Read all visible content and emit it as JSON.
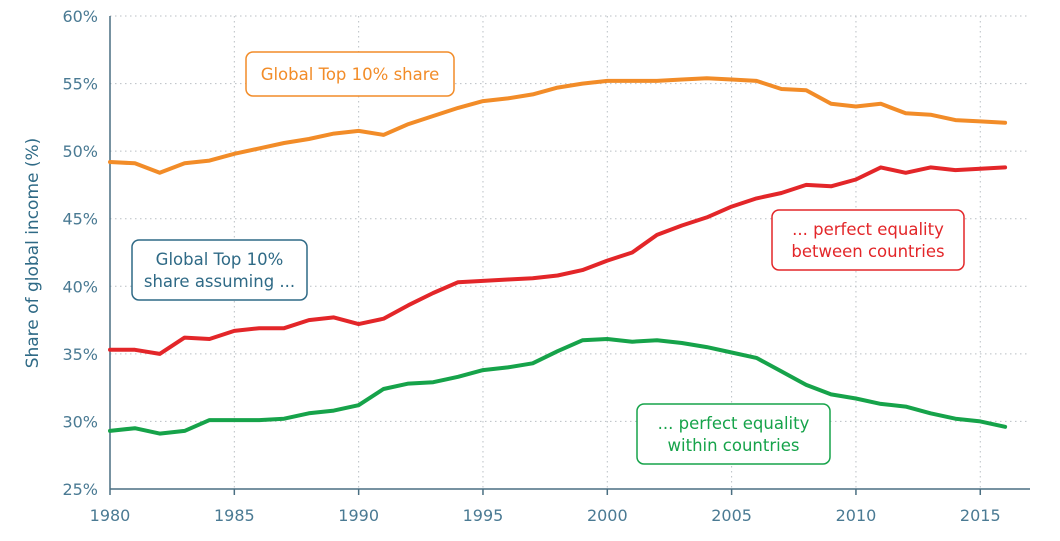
{
  "chart_data": {
    "type": "line",
    "title": "",
    "xlabel": "",
    "ylabel": "Share of global income (%)",
    "xlim": [
      1980,
      2017
    ],
    "ylim": [
      25,
      60
    ],
    "x_ticks": [
      1980,
      1985,
      1990,
      1995,
      2000,
      2005,
      2010,
      2015
    ],
    "y_ticks": [
      25,
      30,
      35,
      40,
      45,
      50,
      55,
      60
    ],
    "y_tick_labels": [
      "25%",
      "30%",
      "35%",
      "40%",
      "45%",
      "50%",
      "55%",
      "60%"
    ],
    "grid": true,
    "x": [
      1980,
      1981,
      1982,
      1983,
      1984,
      1985,
      1986,
      1987,
      1988,
      1989,
      1990,
      1991,
      1992,
      1993,
      1994,
      1995,
      1996,
      1997,
      1998,
      1999,
      2000,
      2001,
      2002,
      2003,
      2004,
      2005,
      2006,
      2007,
      2008,
      2009,
      2010,
      2011,
      2012,
      2013,
      2014,
      2015,
      2016
    ],
    "series": [
      {
        "key": "top10",
        "color": "#f28c28",
        "values": [
          49.2,
          49.1,
          48.4,
          49.1,
          49.3,
          49.8,
          50.2,
          50.6,
          50.9,
          51.3,
          51.5,
          51.2,
          52.0,
          52.6,
          53.2,
          53.7,
          53.9,
          54.2,
          54.7,
          55.0,
          55.2,
          55.2,
          55.2,
          55.3,
          55.4,
          55.3,
          55.2,
          54.6,
          54.5,
          53.5,
          53.3,
          53.5,
          52.8,
          52.7,
          52.3,
          52.2,
          52.1
        ]
      },
      {
        "key": "between",
        "color": "#e32629",
        "values": [
          35.3,
          35.3,
          35.0,
          36.2,
          36.1,
          36.7,
          36.9,
          36.9,
          37.5,
          37.7,
          37.2,
          37.6,
          38.6,
          39.5,
          40.3,
          40.4,
          40.5,
          40.6,
          40.8,
          41.2,
          41.9,
          42.5,
          43.8,
          44.5,
          45.1,
          45.9,
          46.5,
          46.9,
          47.5,
          47.4,
          47.9,
          48.8,
          48.4,
          48.8,
          48.6,
          48.7,
          48.8
        ]
      },
      {
        "key": "within",
        "color": "#16a34a",
        "values": [
          29.3,
          29.5,
          29.1,
          29.3,
          30.1,
          30.1,
          30.1,
          30.2,
          30.6,
          30.8,
          31.2,
          32.4,
          32.8,
          32.9,
          33.3,
          33.8,
          34.0,
          34.3,
          35.2,
          36.0,
          36.1,
          35.9,
          36.0,
          35.8,
          35.5,
          35.1,
          34.7,
          33.7,
          32.7,
          32.0,
          31.7,
          31.3,
          31.1,
          30.6,
          30.2,
          30.0,
          29.6
        ]
      }
    ],
    "annotations": [
      {
        "key": "top10-label",
        "lines": [
          "Global Top 10% share"
        ],
        "color": "#f28c28"
      },
      {
        "key": "assuming-label",
        "lines": [
          "Global Top 10%",
          "share assuming ..."
        ],
        "color": "#2f6a86"
      },
      {
        "key": "between-label",
        "lines": [
          "... perfect equality",
          "between countries"
        ],
        "color": "#e32629"
      },
      {
        "key": "within-label",
        "lines": [
          "... perfect equality",
          "within countries"
        ],
        "color": "#16a34a"
      }
    ]
  }
}
